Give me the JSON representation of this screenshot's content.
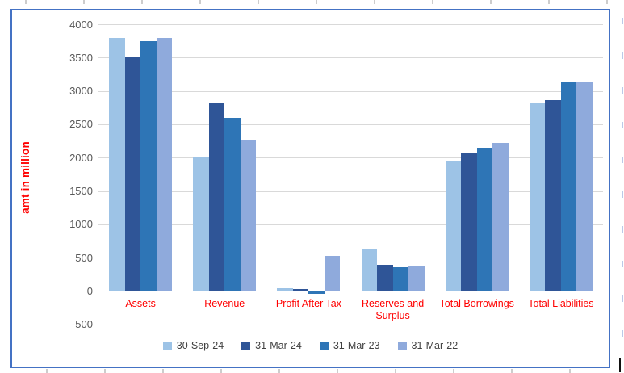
{
  "chart_data": {
    "type": "bar",
    "title": "",
    "ylabel": "amt in million",
    "xlabel": "",
    "ylim": [
      -500,
      4000
    ],
    "ytick_step": 500,
    "yticks": [
      4000,
      3500,
      3000,
      2500,
      2000,
      1500,
      1000,
      500,
      0,
      -500
    ],
    "grid": true,
    "legend_position": "bottom",
    "categories": [
      "Assets",
      "Revenue",
      "Profit After Tax",
      "Reserves and Surplus",
      "Total Borrowings",
      "Total Liabilities"
    ],
    "series": [
      {
        "name": "30-Sep-24",
        "color": "#9DC3E6",
        "values": [
          3800,
          2010,
          40,
          620,
          1950,
          2810
        ]
      },
      {
        "name": "31-Mar-24",
        "color": "#2F5597",
        "values": [
          3510,
          2810,
          30,
          390,
          2060,
          2860
        ]
      },
      {
        "name": "31-Mar-23",
        "color": "#2E75B6",
        "values": [
          3740,
          2600,
          -30,
          355,
          2150,
          3130
        ]
      },
      {
        "name": "31-Mar-22",
        "color": "#8FAADC",
        "values": [
          3790,
          2260,
          530,
          380,
          2220,
          3140
        ]
      }
    ]
  },
  "colors": {
    "chart_border": "#4472C4",
    "category_label": "#FF0000",
    "axis_text": "#595959",
    "gridline": "#D9D9D9",
    "legend_text": "#404040"
  }
}
